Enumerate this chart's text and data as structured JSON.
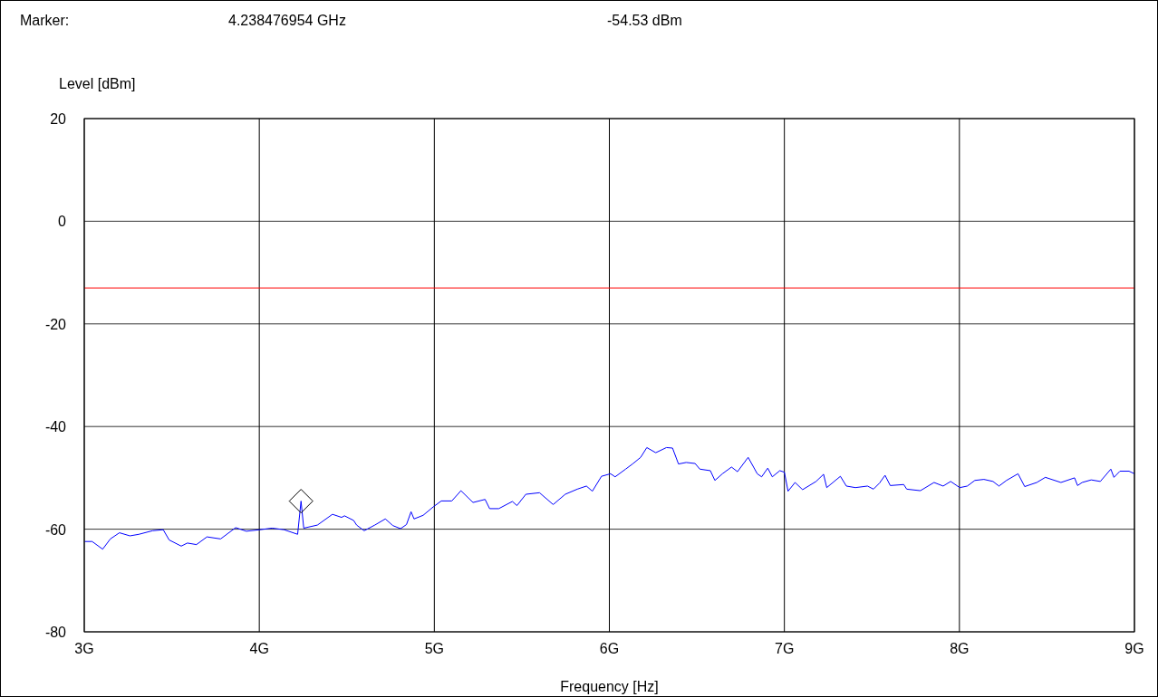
{
  "chart_data": {
    "type": "line",
    "xlabel": "Frequency [Hz]",
    "ylabel": "Level [dBm]",
    "annotations": [
      "Marker:",
      "4.238476954 GHz",
      "-54.53 dBm"
    ],
    "xlim": [
      3,
      9
    ],
    "ylim": [
      -80,
      20
    ],
    "xticks": [
      {
        "value": 3,
        "label": "3G"
      },
      {
        "value": 4,
        "label": "4G"
      },
      {
        "value": 5,
        "label": "5G"
      },
      {
        "value": 6,
        "label": "6G"
      },
      {
        "value": 7,
        "label": "7G"
      },
      {
        "value": 8,
        "label": "8G"
      },
      {
        "value": 9,
        "label": "9G"
      }
    ],
    "yticks": [
      20,
      0,
      -20,
      -40,
      -60,
      -80
    ],
    "grid": true,
    "ref_lines": [
      {
        "axis": "y",
        "value": -13,
        "color": "#ff0000"
      }
    ],
    "series": [
      {
        "color": "#0000ff",
        "x": [
          3.002,
          3.045,
          3.105,
          3.149,
          3.201,
          3.261,
          3.312,
          3.39,
          3.451,
          3.485,
          3.554,
          3.589,
          3.641,
          3.701,
          3.779,
          3.865,
          3.926,
          4.004,
          4.073,
          4.141,
          4.219,
          4.238476954,
          4.254,
          4.332,
          4.418,
          4.47,
          4.487,
          4.539,
          4.556,
          4.599,
          4.66,
          4.72,
          4.763,
          4.807,
          4.841,
          4.867,
          4.884,
          4.936,
          4.996,
          5.04,
          5.1,
          5.152,
          5.221,
          5.29,
          5.316,
          5.368,
          5.446,
          5.472,
          5.523,
          5.601,
          5.679,
          5.748,
          5.817,
          5.869,
          5.903,
          5.955,
          6.007,
          6.033,
          6.093,
          6.136,
          6.179,
          6.214,
          6.265,
          6.326,
          6.361,
          6.395,
          6.439,
          6.49,
          6.517,
          6.577,
          6.603,
          6.646,
          6.698,
          6.732,
          6.793,
          6.845,
          6.87,
          6.905,
          6.931,
          6.974,
          7.0,
          7.021,
          7.061,
          7.104,
          7.181,
          7.224,
          7.242,
          7.32,
          7.354,
          7.406,
          7.475,
          7.509,
          7.544,
          7.575,
          7.605,
          7.682,
          7.699,
          7.777,
          7.855,
          7.907,
          7.95,
          8.002,
          8.045,
          8.088,
          8.14,
          8.192,
          8.226,
          8.269,
          8.335,
          8.373,
          8.442,
          8.491,
          8.58,
          8.658,
          8.675,
          8.701,
          8.753,
          8.805,
          8.865,
          8.883,
          8.917,
          8.969,
          9.0
        ],
        "values": [
          -62.4,
          -62.4,
          -63.9,
          -61.9,
          -60.7,
          -61.3,
          -61.0,
          -60.3,
          -60.1,
          -62.1,
          -63.3,
          -62.7,
          -63.0,
          -61.5,
          -61.9,
          -59.7,
          -60.4,
          -60.1,
          -59.8,
          -60.1,
          -61.0,
          -54.53,
          -59.8,
          -59.2,
          -57.1,
          -57.7,
          -57.4,
          -58.3,
          -59.2,
          -60.3,
          -59.2,
          -58.0,
          -59.3,
          -59.9,
          -59.1,
          -56.6,
          -58.0,
          -57.3,
          -55.6,
          -54.5,
          -54.5,
          -52.5,
          -54.8,
          -54.2,
          -56.0,
          -56.0,
          -54.6,
          -55.4,
          -53.2,
          -52.9,
          -55.2,
          -53.2,
          -52.2,
          -51.6,
          -52.6,
          -49.7,
          -49.2,
          -49.8,
          -48.3,
          -47.2,
          -46.0,
          -44.1,
          -45.1,
          -44.1,
          -44.2,
          -47.3,
          -47.0,
          -47.2,
          -48.3,
          -48.6,
          -50.5,
          -49.2,
          -47.9,
          -48.8,
          -46.0,
          -49.2,
          -49.8,
          -48.1,
          -49.8,
          -48.6,
          -48.9,
          -52.6,
          -50.9,
          -52.3,
          -50.7,
          -49.3,
          -51.9,
          -49.7,
          -51.6,
          -51.9,
          -51.6,
          -52.2,
          -51.0,
          -49.5,
          -51.5,
          -51.3,
          -52.2,
          -52.5,
          -50.9,
          -51.6,
          -50.7,
          -51.9,
          -51.6,
          -50.5,
          -50.3,
          -50.7,
          -51.6,
          -50.5,
          -49.2,
          -51.7,
          -50.9,
          -49.9,
          -50.9,
          -50.0,
          -51.5,
          -50.9,
          -50.4,
          -50.7,
          -48.3,
          -49.9,
          -48.7,
          -48.7,
          -49.2
        ]
      },
      {
        "type": "scatter",
        "color": "#000000",
        "marker": "diamond",
        "x": [
          4.238476954
        ],
        "values": [
          -54.53
        ]
      }
    ]
  }
}
